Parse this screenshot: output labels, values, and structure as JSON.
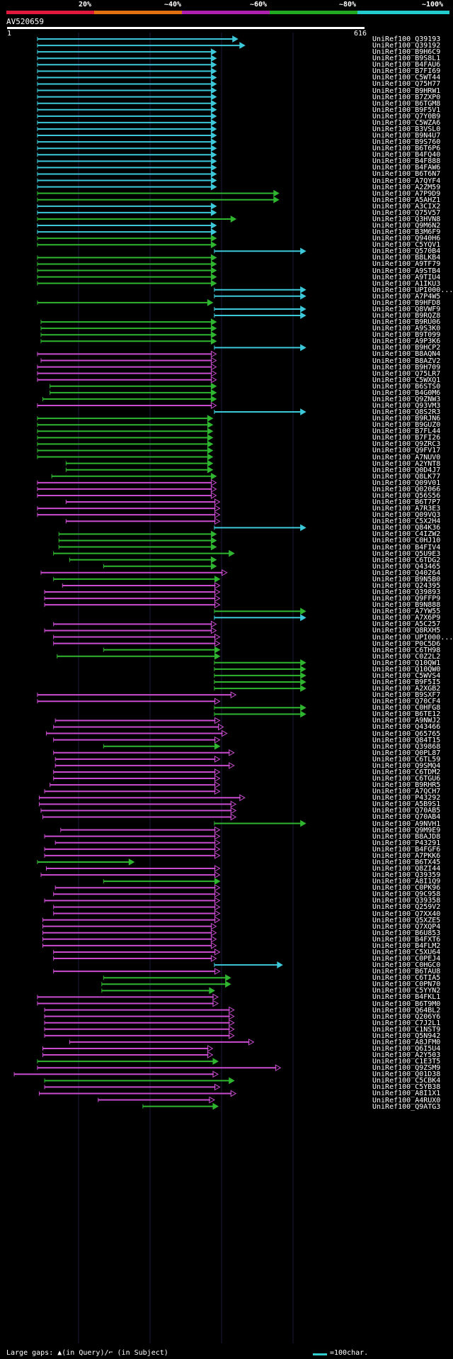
{
  "legend": {
    "labels": [
      "20%",
      "~40%",
      "~60%",
      "~80%",
      "~100%"
    ],
    "colors": [
      "#e0193a",
      "#e07010",
      "#b020b0",
      "#22aa22",
      "#22cccc"
    ]
  },
  "query": {
    "title": "AV520659",
    "start": "1",
    "end": "616"
  },
  "hits": [
    {
      "label": "UniRef100_Q39193",
      "s": 0.085,
      "e": 0.645,
      "c": "cyan"
    },
    {
      "label": "UniRef100_Q39192",
      "s": 0.085,
      "e": 0.665,
      "c": "cyan"
    },
    {
      "label": "UniRef100_B9H6C9",
      "s": 0.085,
      "e": 0.585,
      "c": "cyan"
    },
    {
      "label": "UniRef100_B9S8L1",
      "s": 0.085,
      "e": 0.585,
      "c": "cyan"
    },
    {
      "label": "UniRef100_B4FAU6",
      "s": 0.085,
      "e": 0.585,
      "c": "cyan"
    },
    {
      "label": "UniRef100_B7FI69",
      "s": 0.085,
      "e": 0.585,
      "c": "cyan"
    },
    {
      "label": "UniRef100_C5WT44",
      "s": 0.085,
      "e": 0.585,
      "c": "cyan"
    },
    {
      "label": "UniRef100_Q75H77",
      "s": 0.085,
      "e": 0.585,
      "c": "cyan"
    },
    {
      "label": "UniRef100_B9HRW1",
      "s": 0.085,
      "e": 0.585,
      "c": "cyan"
    },
    {
      "label": "UniRef100_B7ZXP0",
      "s": 0.085,
      "e": 0.585,
      "c": "cyan"
    },
    {
      "label": "UniRef100_B6TGM8",
      "s": 0.085,
      "e": 0.585,
      "c": "cyan"
    },
    {
      "label": "UniRef100_B9F5V1",
      "s": 0.085,
      "e": 0.585,
      "c": "cyan"
    },
    {
      "label": "UniRef100_Q7Y0B9",
      "s": 0.085,
      "e": 0.585,
      "c": "cyan"
    },
    {
      "label": "UniRef100_C5WZA6",
      "s": 0.085,
      "e": 0.585,
      "c": "cyan"
    },
    {
      "label": "UniRef100_B3VSL0",
      "s": 0.085,
      "e": 0.585,
      "c": "cyan"
    },
    {
      "label": "UniRef100_B9N4U7",
      "s": 0.085,
      "e": 0.585,
      "c": "cyan"
    },
    {
      "label": "UniRef100_B9S760",
      "s": 0.085,
      "e": 0.585,
      "c": "cyan"
    },
    {
      "label": "UniRef100_B6T6P6",
      "s": 0.085,
      "e": 0.585,
      "c": "cyan"
    },
    {
      "label": "UniRef100_B4FQ40",
      "s": 0.085,
      "e": 0.585,
      "c": "cyan"
    },
    {
      "label": "UniRef100_B4F888",
      "s": 0.085,
      "e": 0.585,
      "c": "cyan"
    },
    {
      "label": "UniRef100_B4FAW6",
      "s": 0.085,
      "e": 0.585,
      "c": "cyan"
    },
    {
      "label": "UniRef100_B6T6N7",
      "s": 0.085,
      "e": 0.585,
      "c": "cyan"
    },
    {
      "label": "UniRef100_A7QYF4",
      "s": 0.085,
      "e": 0.585,
      "c": "cyan"
    },
    {
      "label": "UniRef100_A2ZM59",
      "s": 0.085,
      "e": 0.585,
      "c": "cyan"
    },
    {
      "label": "UniRef100_A7P9D9",
      "s": 0.085,
      "e": 0.76,
      "c": "green"
    },
    {
      "label": "UniRef100_A5AHZ1",
      "s": 0.085,
      "e": 0.76,
      "c": "green"
    },
    {
      "label": "UniRef100_A3CIX2",
      "s": 0.085,
      "e": 0.585,
      "c": "cyan"
    },
    {
      "label": "UniRef100_Q75V57",
      "s": 0.085,
      "e": 0.585,
      "c": "cyan"
    },
    {
      "label": "UniRef100_Q3HVN8",
      "s": 0.085,
      "e": 0.64,
      "c": "green"
    },
    {
      "label": "UniRef100_Q9M6N2",
      "s": 0.085,
      "e": 0.585,
      "c": "cyan"
    },
    {
      "label": "UniRef100_B3M6F9",
      "s": 0.085,
      "e": 0.585,
      "c": "cyan"
    },
    {
      "label": "UniRef100_Q940H6",
      "s": 0.085,
      "e": 0.585,
      "c": "green"
    },
    {
      "label": "UniRef100_C5YQV1",
      "s": 0.085,
      "e": 0.585,
      "c": "green"
    },
    {
      "label": "UniRef100_Q570B4",
      "s": 0.58,
      "e": 0.835,
      "c": "cyan"
    },
    {
      "label": "UniRef100_B8LKB4",
      "s": 0.085,
      "e": 0.585,
      "c": "green"
    },
    {
      "label": "UniRef100_A9TF79",
      "s": 0.085,
      "e": 0.585,
      "c": "green"
    },
    {
      "label": "UniRef100_A9STB4",
      "s": 0.085,
      "e": 0.585,
      "c": "green"
    },
    {
      "label": "UniRef100_A9TIU4",
      "s": 0.085,
      "e": 0.585,
      "c": "green"
    },
    {
      "label": "UniRef100_A1IKU3",
      "s": 0.085,
      "e": 0.585,
      "c": "green"
    },
    {
      "label": "UniRef100_UPI000...",
      "s": 0.58,
      "e": 0.835,
      "c": "cyan"
    },
    {
      "label": "UniRef100_A7P4W5",
      "s": 0.58,
      "e": 0.835,
      "c": "cyan"
    },
    {
      "label": "UniRef100_B9HFD8",
      "s": 0.085,
      "e": 0.575,
      "c": "green"
    },
    {
      "label": "UniRef100_Q8VWF9",
      "s": 0.58,
      "e": 0.835,
      "c": "cyan"
    },
    {
      "label": "UniRef100_B9RQZ8",
      "s": 0.58,
      "e": 0.835,
      "c": "cyan"
    },
    {
      "label": "UniRef100_B9RU06",
      "s": 0.095,
      "e": 0.585,
      "c": "green"
    },
    {
      "label": "UniRef100_A9S3K0",
      "s": 0.095,
      "e": 0.585,
      "c": "green"
    },
    {
      "label": "UniRef100_B9T099",
      "s": 0.095,
      "e": 0.585,
      "c": "green"
    },
    {
      "label": "UniRef100_A9P3K6",
      "s": 0.095,
      "e": 0.585,
      "c": "green"
    },
    {
      "label": "UniRef100_B9HCP2",
      "s": 0.58,
      "e": 0.835,
      "c": "cyan"
    },
    {
      "label": "UniRef100_B8AQN4",
      "s": 0.085,
      "e": 0.585,
      "c": "magenta"
    },
    {
      "label": "UniRef100_B8AZV2",
      "s": 0.095,
      "e": 0.585,
      "c": "magenta"
    },
    {
      "label": "UniRef100_B9H709",
      "s": 0.085,
      "e": 0.585,
      "c": "magenta"
    },
    {
      "label": "UniRef100_Q75LR7",
      "s": 0.085,
      "e": 0.585,
      "c": "magenta"
    },
    {
      "label": "UniRef100_C5WXQ1",
      "s": 0.085,
      "e": 0.585,
      "c": "magenta"
    },
    {
      "label": "UniRef100_B6STS0",
      "s": 0.12,
      "e": 0.585,
      "c": "green"
    },
    {
      "label": "UniRef100_B4G0M6",
      "s": 0.12,
      "e": 0.585,
      "c": "green"
    },
    {
      "label": "UniRef100_Q9ZNW3",
      "s": 0.1,
      "e": 0.585,
      "c": "green"
    },
    {
      "label": "UniRef100_Q93VM3",
      "s": 0.085,
      "e": 0.585,
      "c": "magenta"
    },
    {
      "label": "UniRef100_Q8S2R3",
      "s": 0.58,
      "e": 0.835,
      "c": "cyan"
    },
    {
      "label": "UniRef100_B9RJN6",
      "s": 0.085,
      "e": 0.575,
      "c": "green"
    },
    {
      "label": "UniRef100_B9GUZ0",
      "s": 0.085,
      "e": 0.575,
      "c": "green"
    },
    {
      "label": "UniRef100_B7FL44",
      "s": 0.085,
      "e": 0.575,
      "c": "green"
    },
    {
      "label": "UniRef100_B7FI26",
      "s": 0.085,
      "e": 0.575,
      "c": "green"
    },
    {
      "label": "UniRef100_Q9ZRC3",
      "s": 0.085,
      "e": 0.575,
      "c": "green"
    },
    {
      "label": "UniRef100_Q9FV17",
      "s": 0.085,
      "e": 0.575,
      "c": "green"
    },
    {
      "label": "UniRef100_A7NUV0",
      "s": 0.085,
      "e": 0.575,
      "c": "green"
    },
    {
      "label": "UniRef100_A2YNT8",
      "s": 0.165,
      "e": 0.575,
      "c": "green"
    },
    {
      "label": "UniRef100_Q0D4J7",
      "s": 0.165,
      "e": 0.575,
      "c": "green"
    },
    {
      "label": "UniRef100_Q8LK77",
      "s": 0.125,
      "e": 0.585,
      "c": "green"
    },
    {
      "label": "UniRef100_Q09V01",
      "s": 0.085,
      "e": 0.585,
      "c": "magenta"
    },
    {
      "label": "UniRef100_Q02066",
      "s": 0.085,
      "e": 0.585,
      "c": "magenta"
    },
    {
      "label": "UniRef100_Q56S56",
      "s": 0.085,
      "e": 0.585,
      "c": "magenta"
    },
    {
      "label": "UniRef100_B6T7P7",
      "s": 0.165,
      "e": 0.595,
      "c": "magenta"
    },
    {
      "label": "UniRef100_A7R3E3",
      "s": 0.085,
      "e": 0.595,
      "c": "magenta"
    },
    {
      "label": "UniRef100_Q09VQ3",
      "s": 0.085,
      "e": 0.595,
      "c": "magenta"
    },
    {
      "label": "UniRef100_C5X2H4",
      "s": 0.165,
      "e": 0.595,
      "c": "magenta"
    },
    {
      "label": "UniRef100_Q84K36",
      "s": 0.58,
      "e": 0.835,
      "c": "cyan"
    },
    {
      "label": "UniRef100_C4IZW2",
      "s": 0.145,
      "e": 0.585,
      "c": "green"
    },
    {
      "label": "UniRef100_C0HJ10",
      "s": 0.145,
      "e": 0.585,
      "c": "green"
    },
    {
      "label": "UniRef100_B4FIV4",
      "s": 0.145,
      "e": 0.585,
      "c": "green"
    },
    {
      "label": "UniRef100_Q5U9E3",
      "s": 0.13,
      "e": 0.635,
      "c": "green"
    },
    {
      "label": "UniRef100_C6TDG2",
      "s": 0.175,
      "e": 0.585,
      "c": "green"
    },
    {
      "label": "UniRef100_Q43465",
      "s": 0.27,
      "e": 0.585,
      "c": "green"
    },
    {
      "label": "UniRef100_Q40264",
      "s": 0.095,
      "e": 0.615,
      "c": "magenta"
    },
    {
      "label": "UniRef100_B9N5B0",
      "s": 0.13,
      "e": 0.595,
      "c": "green"
    },
    {
      "label": "UniRef100_Q24395",
      "s": 0.155,
      "e": 0.595,
      "c": "magenta"
    },
    {
      "label": "UniRef100_Q39893",
      "s": 0.105,
      "e": 0.595,
      "c": "magenta"
    },
    {
      "label": "UniRef100_Q9FFP9",
      "s": 0.105,
      "e": 0.595,
      "c": "magenta"
    },
    {
      "label": "UniRef100_B9N888",
      "s": 0.105,
      "e": 0.595,
      "c": "magenta"
    },
    {
      "label": "UniRef100_A7YW55",
      "s": 0.58,
      "e": 0.835,
      "c": "green"
    },
    {
      "label": "UniRef100_A7X6P9",
      "s": 0.58,
      "e": 0.835,
      "c": "cyan"
    },
    {
      "label": "UniRef100_A5C257",
      "s": 0.13,
      "e": 0.585,
      "c": "magenta"
    },
    {
      "label": "UniRef100_Q8RXH5",
      "s": 0.105,
      "e": 0.585,
      "c": "magenta"
    },
    {
      "label": "UniRef100_UPI000...",
      "s": 0.13,
      "e": 0.595,
      "c": "magenta"
    },
    {
      "label": "UniRef100_P0C5D6",
      "s": 0.13,
      "e": 0.595,
      "c": "magenta"
    },
    {
      "label": "UniRef100_C6TH98",
      "s": 0.27,
      "e": 0.595,
      "c": "green"
    },
    {
      "label": "UniRef100_C0Z2L2",
      "s": 0.14,
      "e": 0.595,
      "c": "green"
    },
    {
      "label": "UniRef100_Q10QW1",
      "s": 0.58,
      "e": 0.835,
      "c": "green"
    },
    {
      "label": "UniRef100_Q10QW0",
      "s": 0.58,
      "e": 0.835,
      "c": "green"
    },
    {
      "label": "UniRef100_C5WVS4",
      "s": 0.58,
      "e": 0.835,
      "c": "green"
    },
    {
      "label": "UniRef100_B9F5I5",
      "s": 0.58,
      "e": 0.835,
      "c": "green"
    },
    {
      "label": "UniRef100_A2XGB2",
      "s": 0.58,
      "e": 0.835,
      "c": "green"
    },
    {
      "label": "UniRef100_B9SXF7",
      "s": 0.085,
      "e": 0.64,
      "c": "magenta"
    },
    {
      "label": "UniRef100_Q70CF4",
      "s": 0.085,
      "e": 0.595,
      "c": "magenta"
    },
    {
      "label": "UniRef100_C0HFG8",
      "s": 0.58,
      "e": 0.835,
      "c": "green"
    },
    {
      "label": "UniRef100_B6TE12",
      "s": 0.58,
      "e": 0.835,
      "c": "green"
    },
    {
      "label": "UniRef100_A9NWJ2",
      "s": 0.135,
      "e": 0.595,
      "c": "magenta"
    },
    {
      "label": "UniRef100_Q43466",
      "s": 0.13,
      "e": 0.605,
      "c": "magenta"
    },
    {
      "label": "UniRef100_Q65765",
      "s": 0.11,
      "e": 0.615,
      "c": "magenta"
    },
    {
      "label": "UniRef100_Q84T15",
      "s": 0.13,
      "e": 0.595,
      "c": "magenta"
    },
    {
      "label": "UniRef100_Q39868",
      "s": 0.27,
      "e": 0.595,
      "c": "green"
    },
    {
      "label": "UniRef100_Q0PL87",
      "s": 0.13,
      "e": 0.635,
      "c": "magenta"
    },
    {
      "label": "UniRef100_C6TL59",
      "s": 0.135,
      "e": 0.595,
      "c": "magenta"
    },
    {
      "label": "UniRef100_Q9SMQ4",
      "s": 0.135,
      "e": 0.635,
      "c": "magenta"
    },
    {
      "label": "UniRef100_C6TDM2",
      "s": 0.13,
      "e": 0.595,
      "c": "magenta"
    },
    {
      "label": "UniRef100_C6TGU6",
      "s": 0.13,
      "e": 0.595,
      "c": "magenta"
    },
    {
      "label": "UniRef100_B9RHR5",
      "s": 0.12,
      "e": 0.595,
      "c": "magenta"
    },
    {
      "label": "UniRef100_A7QCH7",
      "s": 0.105,
      "e": 0.595,
      "c": "magenta"
    },
    {
      "label": "UniRef100_P43292",
      "s": 0.09,
      "e": 0.665,
      "c": "magenta"
    },
    {
      "label": "UniRef100_A5B9S1",
      "s": 0.09,
      "e": 0.64,
      "c": "magenta"
    },
    {
      "label": "UniRef100_Q70AB5",
      "s": 0.095,
      "e": 0.64,
      "c": "magenta"
    },
    {
      "label": "UniRef100_Q70AB4",
      "s": 0.1,
      "e": 0.64,
      "c": "magenta"
    },
    {
      "label": "UniRef100_A9NVH1",
      "s": 0.58,
      "e": 0.835,
      "c": "green"
    },
    {
      "label": "UniRef100_Q9M9E9",
      "s": 0.15,
      "e": 0.595,
      "c": "magenta"
    },
    {
      "label": "UniRef100_B8AJD8",
      "s": 0.105,
      "e": 0.595,
      "c": "magenta"
    },
    {
      "label": "UniRef100_P43291",
      "s": 0.135,
      "e": 0.595,
      "c": "magenta"
    },
    {
      "label": "UniRef100_B4FGF6",
      "s": 0.105,
      "e": 0.595,
      "c": "magenta"
    },
    {
      "label": "UniRef100_A7PKK6",
      "s": 0.105,
      "e": 0.595,
      "c": "magenta"
    },
    {
      "label": "UniRef100_B6TX45",
      "s": 0.085,
      "e": 0.355,
      "c": "green"
    },
    {
      "label": "UniRef100_Q8ZI44",
      "s": 0.11,
      "e": 0.595,
      "c": "magenta"
    },
    {
      "label": "UniRef100_Q39359",
      "s": 0.095,
      "e": 0.595,
      "c": "magenta"
    },
    {
      "label": "UniRef100_A8I1Q9",
      "s": 0.27,
      "e": 0.595,
      "c": "green"
    },
    {
      "label": "UniRef100_C0PK96",
      "s": 0.135,
      "e": 0.595,
      "c": "magenta"
    },
    {
      "label": "UniRef100_Q9C958",
      "s": 0.13,
      "e": 0.595,
      "c": "magenta"
    },
    {
      "label": "UniRef100_Q39358",
      "s": 0.105,
      "e": 0.595,
      "c": "magenta"
    },
    {
      "label": "UniRef100_Q259V2",
      "s": 0.13,
      "e": 0.595,
      "c": "magenta"
    },
    {
      "label": "UniRef100_Q7XX40",
      "s": 0.13,
      "e": 0.595,
      "c": "magenta"
    },
    {
      "label": "UniRef100_Q5XZE5",
      "s": 0.1,
      "e": 0.595,
      "c": "magenta"
    },
    {
      "label": "UniRef100_Q7XQP4",
      "s": 0.1,
      "e": 0.585,
      "c": "magenta"
    },
    {
      "label": "UniRef100_B6U853",
      "s": 0.1,
      "e": 0.585,
      "c": "magenta"
    },
    {
      "label": "UniRef100_B4FXT6",
      "s": 0.1,
      "e": 0.585,
      "c": "magenta"
    },
    {
      "label": "UniRef100_B4FLM2",
      "s": 0.1,
      "e": 0.585,
      "c": "magenta"
    },
    {
      "label": "UniRef100_C5XU64",
      "s": 0.13,
      "e": 0.595,
      "c": "magenta"
    },
    {
      "label": "UniRef100_C0PEJ4",
      "s": 0.13,
      "e": 0.585,
      "c": "magenta"
    },
    {
      "label": "UniRef100_C0HGC0",
      "s": 0.58,
      "e": 0.77,
      "c": "cyan"
    },
    {
      "label": "UniRef100_B6TAU8",
      "s": 0.13,
      "e": 0.595,
      "c": "magenta"
    },
    {
      "label": "UniRef100_C6TIA5",
      "s": 0.27,
      "e": 0.625,
      "c": "green"
    },
    {
      "label": "UniRef100_C0PN70",
      "s": 0.265,
      "e": 0.625,
      "c": "green"
    },
    {
      "label": "UniRef100_C5YYN2",
      "s": 0.265,
      "e": 0.58,
      "c": "green"
    },
    {
      "label": "UniRef100_B4FKL1",
      "s": 0.085,
      "e": 0.59,
      "c": "magenta"
    },
    {
      "label": "UniRef100_B6T9M0",
      "s": 0.085,
      "e": 0.59,
      "c": "magenta"
    },
    {
      "label": "UniRef100_Q64BL2",
      "s": 0.105,
      "e": 0.635,
      "c": "magenta"
    },
    {
      "label": "UniRef100_Q206Y6",
      "s": 0.105,
      "e": 0.635,
      "c": "magenta"
    },
    {
      "label": "UniRef100_C7J2L1",
      "s": 0.105,
      "e": 0.635,
      "c": "magenta"
    },
    {
      "label": "UniRef100_C1NST9",
      "s": 0.105,
      "e": 0.635,
      "c": "magenta"
    },
    {
      "label": "UniRef100_Q5N942",
      "s": 0.105,
      "e": 0.635,
      "c": "magenta"
    },
    {
      "label": "UniRef100_A8JFM0",
      "s": 0.175,
      "e": 0.69,
      "c": "magenta"
    },
    {
      "label": "UniRef100_Q6I5U4",
      "s": 0.1,
      "e": 0.575,
      "c": "magenta"
    },
    {
      "label": "UniRef100_A2Y503",
      "s": 0.1,
      "e": 0.575,
      "c": "magenta"
    },
    {
      "label": "UniRef100_C1E3T5",
      "s": 0.085,
      "e": 0.59,
      "c": "green"
    },
    {
      "label": "UniRef100_Q9ZSM9",
      "s": 0.085,
      "e": 0.765,
      "c": "magenta"
    },
    {
      "label": "UniRef100_Q01D38",
      "s": 0.02,
      "e": 0.59,
      "c": "magenta"
    },
    {
      "label": "UniRef100_C5CBK4",
      "s": 0.105,
      "e": 0.635,
      "c": "green"
    },
    {
      "label": "UniRef100_C5YB38",
      "s": 0.105,
      "e": 0.595,
      "c": "magenta"
    },
    {
      "label": "UniRef100_A8I1X1",
      "s": 0.09,
      "e": 0.64,
      "c": "magenta"
    },
    {
      "label": "UniRef100_A4RUX0",
      "s": 0.255,
      "e": 0.58,
      "c": "magenta"
    },
    {
      "label": "UniRef100_Q9ATG3",
      "s": 0.38,
      "e": 0.59,
      "c": "green"
    }
  ],
  "footer": {
    "text": "Large gaps: ▲(in Query)/⌐ (in Subject)",
    "key_text": "=100char."
  }
}
